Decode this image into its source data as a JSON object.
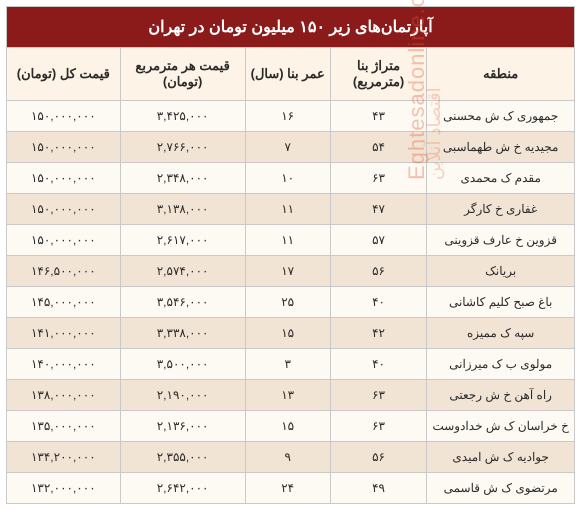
{
  "title": "آپارتمان‌های زیر ۱۵۰ میلیون تومان در تهران",
  "columns": [
    "منطقه",
    "متراژ بنا (مترمربع)",
    "عمر بنا (سال)",
    "قیمت هر مترمربع (تومان)",
    "قیمت کل (تومان)"
  ],
  "rows": [
    [
      "جمهوری ک ش محسنی",
      "۴۳",
      "۱۶",
      "۳,۴۲۵,۰۰۰",
      "۱۵۰,۰۰۰,۰۰۰"
    ],
    [
      "مجیدیه خ ش طهماسبی",
      "۵۴",
      "۷",
      "۲,۷۶۶,۰۰۰",
      "۱۵۰,۰۰۰,۰۰۰"
    ],
    [
      "مقدم ک محمدی",
      "۶۳",
      "۱۰",
      "۲,۳۴۸,۰۰۰",
      "۱۵۰,۰۰۰,۰۰۰"
    ],
    [
      "غفاری خ کارگر",
      "۴۷",
      "۱۱",
      "۳,۱۳۸,۰۰۰",
      "۱۵۰,۰۰۰,۰۰۰"
    ],
    [
      "قزوین خ عارف قزوینی",
      "۵۷",
      "۱۱",
      "۲,۶۱۷,۰۰۰",
      "۱۵۰,۰۰۰,۰۰۰"
    ],
    [
      "بریانک",
      "۵۶",
      "۱۷",
      "۲,۵۷۴,۰۰۰",
      "۱۴۶,۵۰۰,۰۰۰"
    ],
    [
      "باغ صبح کلیم کاشانی",
      "۴۰",
      "۲۵",
      "۳,۵۴۶,۰۰۰",
      "۱۴۵,۰۰۰,۰۰۰"
    ],
    [
      "سپه ک ممیزه",
      "۴۲",
      "۱۵",
      "۳,۳۳۸,۰۰۰",
      "۱۴۱,۰۰۰,۰۰۰"
    ],
    [
      "مولوی ب ک میرزانی",
      "۴۰",
      "۳",
      "۳,۵۰۰,۰۰۰",
      "۱۴۰,۰۰۰,۰۰۰"
    ],
    [
      "راه آهن خ ش رجعتی",
      "۶۳",
      "۱۳",
      "۲,۱۹۰,۰۰۰",
      "۱۳۸,۰۰۰,۰۰۰"
    ],
    [
      "خ خراسان ک ش خدادوست",
      "۶۳",
      "۱۵",
      "۲,۱۳۶,۰۰۰",
      "۱۳۵,۰۰۰,۰۰۰"
    ],
    [
      "جوادیه ک ش امیدی",
      "۵۶",
      "۹",
      "۲,۳۵۵,۰۰۰",
      "۱۳۴,۲۰۰,۰۰۰"
    ],
    [
      "مرتضوی ک ش قاسمی",
      "۴۹",
      "۲۴",
      "۲,۶۴۲,۰۰۰",
      "۱۳۲,۰۰۰,۰۰۰"
    ]
  ],
  "col_widths": [
    "26%",
    "17%",
    "15%",
    "22%",
    "20%"
  ],
  "watermark_en": "Eghtesadonline.com",
  "watermark_fa": "اقتصاد آنلاین",
  "styles": {
    "title_bg": "#8b1a1a",
    "title_color": "#ffffff",
    "header_bg": "#fdf3e7",
    "row_a_bg": "#fdf9f3",
    "row_b_bg": "#f2e4d4",
    "border_color": "#c9c9c9",
    "text_color": "#2b2b2b",
    "watermark_color": "rgba(233,85,45,0.35)"
  }
}
